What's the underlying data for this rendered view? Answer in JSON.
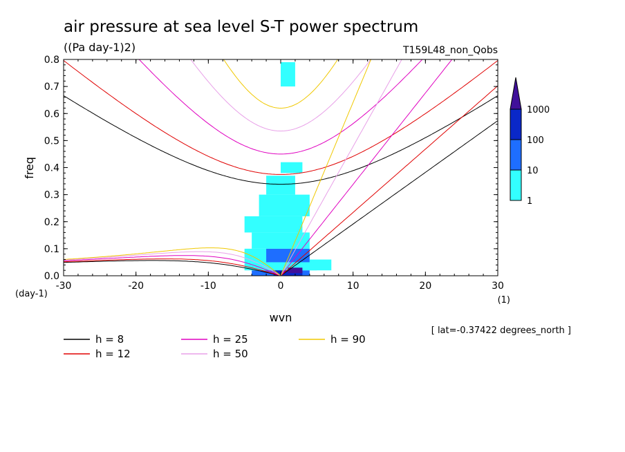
{
  "chart_data": {
    "type": "heatmap",
    "title": "air pressure at sea level S-T power spectrum",
    "subtitle": "((Pa day-1)2)",
    "run_label": "T159L48_non_Qobs",
    "xlabel": "wvn",
    "ylabel": "freq",
    "y_unit_label": "(day-1)",
    "x_unit_label": "(1)",
    "xlim": [
      -30,
      30
    ],
    "ylim": [
      0,
      0.8
    ],
    "x_ticks": [
      -30,
      -20,
      -10,
      0,
      10,
      20,
      30
    ],
    "x_tick_labels": [
      "-30",
      "-20",
      "-10",
      "0",
      "10",
      "20",
      "30"
    ],
    "y_ticks": [
      0,
      0.1,
      0.2,
      0.3,
      0.4,
      0.5,
      0.6,
      0.7,
      0.8
    ],
    "y_tick_labels": [
      "0.0",
      "0.1",
      "0.2",
      "0.3",
      "0.4",
      "0.5",
      "0.6",
      "0.7",
      "0.8"
    ],
    "footnote": "[ lat=-0.37422 degrees_north ]",
    "colorbar": {
      "levels": [
        1,
        10,
        100,
        1000
      ],
      "level_labels": [
        "1",
        "10",
        "100",
        "1000"
      ],
      "colors": [
        "#33ffff",
        "#1e6eff",
        "#0a28c8",
        "#40109a"
      ]
    },
    "dispersion_curves": [
      {
        "h": 8,
        "label": "h =  8",
        "color": "#000000"
      },
      {
        "h": 12,
        "label": "h = 12",
        "color": "#e00000"
      },
      {
        "h": 25,
        "label": "h = 25",
        "color": "#e000c0"
      },
      {
        "h": 50,
        "label": "h = 50",
        "color": "#e8a0e8"
      },
      {
        "h": 90,
        "label": "h = 90",
        "color": "#f0c800"
      }
    ],
    "spectrum_cells": [
      {
        "k0": -4,
        "k1": 4,
        "f0": 0.0,
        "f1": 0.02,
        "level": 1
      },
      {
        "k0": -1,
        "k1": 3,
        "f0": 0.0,
        "f1": 0.06,
        "level": 2
      },
      {
        "k0": -5,
        "k1": 5,
        "f0": 0.02,
        "f1": 0.05,
        "level": 0
      },
      {
        "k0": -5,
        "k1": 4,
        "f0": 0.05,
        "f1": 0.1,
        "level": 0
      },
      {
        "k0": -2,
        "k1": 4,
        "f0": 0.05,
        "f1": 0.1,
        "level": 1
      },
      {
        "k0": -4,
        "k1": 4,
        "f0": 0.1,
        "f1": 0.16,
        "level": 0
      },
      {
        "k0": -5,
        "k1": 3,
        "f0": 0.16,
        "f1": 0.22,
        "level": 0
      },
      {
        "k0": -3,
        "k1": 4,
        "f0": 0.22,
        "f1": 0.3,
        "level": 0
      },
      {
        "k0": -2,
        "k1": 2,
        "f0": 0.3,
        "f1": 0.37,
        "level": 0
      },
      {
        "k0": 0,
        "k1": 3,
        "f0": 0.38,
        "f1": 0.42,
        "level": 0
      },
      {
        "k0": 0,
        "k1": 2,
        "f0": 0.7,
        "f1": 0.79,
        "level": 0
      },
      {
        "k0": 4,
        "k1": 7,
        "f0": 0.02,
        "f1": 0.06,
        "level": 0
      },
      {
        "k0": 1,
        "k1": 3,
        "f0": 0.01,
        "f1": 0.03,
        "level": 3
      }
    ]
  },
  "legend": {
    "items": [
      "h =  8",
      "h = 12",
      "h = 25",
      "h = 50",
      "h = 90"
    ]
  }
}
